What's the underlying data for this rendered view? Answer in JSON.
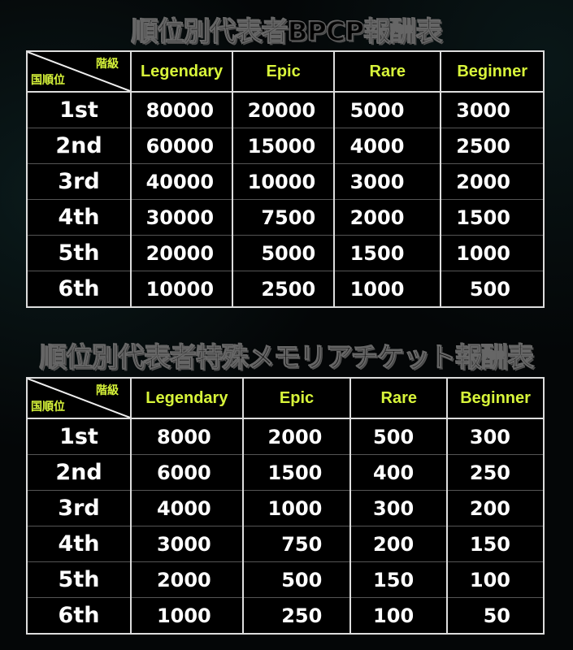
{
  "tables": [
    {
      "title": "順位別代表者BPCP報酬表",
      "corner_top": "階級",
      "corner_bottom": "国順位",
      "headers": [
        "Legendary",
        "Epic",
        "Rare",
        "Beginner"
      ],
      "rows": [
        [
          "1st",
          "80000",
          "20000",
          "5000",
          "3000"
        ],
        [
          "2nd",
          "60000",
          "15000",
          "4000",
          "2500"
        ],
        [
          "3rd",
          "40000",
          "10000",
          "3000",
          "2000"
        ],
        [
          "4th",
          "30000",
          "7500",
          "2000",
          "1500"
        ],
        [
          "5th",
          "20000",
          "5000",
          "1500",
          "1000"
        ],
        [
          "6th",
          "10000",
          "2500",
          "1000",
          "500"
        ]
      ]
    },
    {
      "title": "順位別代表者特殊メモリアチケット報酬表",
      "corner_top": "階級",
      "corner_bottom": "国順位",
      "headers": [
        "Legendary",
        "Epic",
        "Rare",
        "Beginner"
      ],
      "rows": [
        [
          "1st",
          "8000",
          "2000",
          "500",
          "300"
        ],
        [
          "2nd",
          "6000",
          "1500",
          "400",
          "250"
        ],
        [
          "3rd",
          "4000",
          "1000",
          "300",
          "200"
        ],
        [
          "4th",
          "3000",
          "750",
          "200",
          "150"
        ],
        [
          "5th",
          "2000",
          "500",
          "150",
          "100"
        ],
        [
          "6th",
          "1000",
          "250",
          "100",
          "50"
        ]
      ]
    }
  ],
  "colors": {
    "header_text": "#d8f53a",
    "background": "#030506",
    "grid": "#dddddd"
  }
}
